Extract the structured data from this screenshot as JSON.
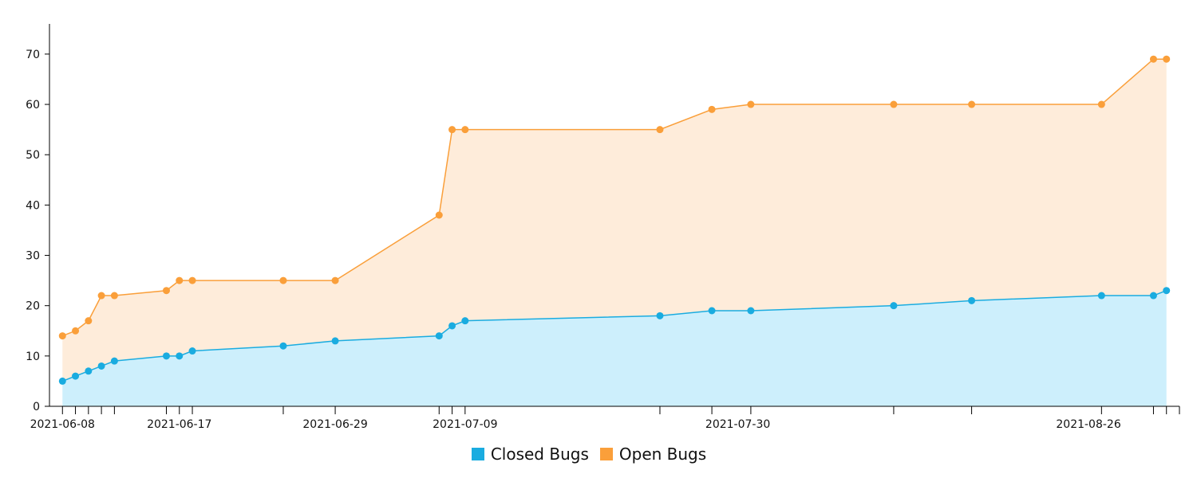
{
  "chart_data": {
    "type": "area",
    "stacked": true,
    "x_type": "date",
    "x": [
      "2021-06-08",
      "2021-06-09",
      "2021-06-10",
      "2021-06-11",
      "2021-06-12",
      "2021-06-16",
      "2021-06-17",
      "2021-06-18",
      "2021-06-25",
      "2021-06-29",
      "2021-07-07",
      "2021-07-08",
      "2021-07-09",
      "2021-07-24",
      "2021-07-28",
      "2021-07-31",
      "2021-08-11",
      "2021-08-17",
      "2021-08-27",
      "2021-08-31",
      "2021-09-01"
    ],
    "x_ticks": [
      "2021-06-08",
      "2021-06-09",
      "2021-06-10",
      "2021-06-11",
      "2021-06-12",
      "2021-06-16",
      "2021-06-17",
      "2021-06-18",
      "2021-06-25",
      "2021-06-29",
      "2021-07-07",
      "2021-07-08",
      "2021-07-09",
      "2021-07-24",
      "2021-07-28",
      "2021-07-31",
      "2021-08-11",
      "2021-08-17",
      "2021-08-27",
      "2021-08-31",
      "2021-09-01",
      "2021-09-02"
    ],
    "x_tick_labels": [
      {
        "date": "2021-06-08",
        "label": "2021-06-08"
      },
      {
        "date": "2021-06-17",
        "label": "2021-06-17"
      },
      {
        "date": "2021-06-29",
        "label": "2021-06-29"
      },
      {
        "date": "2021-07-09",
        "label": "2021-07-09"
      },
      {
        "date": "2021-07-30",
        "label": "2021-07-30"
      },
      {
        "date": "2021-08-26",
        "label": "2021-08-26"
      }
    ],
    "x_range": [
      "2021-06-07",
      "2021-09-02"
    ],
    "ylim": [
      0,
      76
    ],
    "y_ticks": [
      0,
      10,
      20,
      30,
      40,
      50,
      60,
      70
    ],
    "series": [
      {
        "name": "Closed Bugs",
        "color": "#1aace0",
        "fill": "#cdeffc",
        "values": [
          5,
          6,
          7,
          8,
          9,
          10,
          10,
          11,
          12,
          13,
          14,
          16,
          17,
          18,
          19,
          19,
          20,
          21,
          22,
          22,
          23
        ]
      },
      {
        "name": "Open Bugs",
        "color": "#fa9f3a",
        "fill": "#feecda",
        "values": [
          9,
          9,
          10,
          14,
          13,
          13,
          15,
          14,
          13,
          12,
          24,
          39,
          38,
          37,
          40,
          41,
          40,
          39,
          38,
          47,
          46
        ]
      }
    ],
    "title": "",
    "xlabel": "",
    "ylabel": "",
    "grid": false,
    "legend_position": "bottom"
  }
}
